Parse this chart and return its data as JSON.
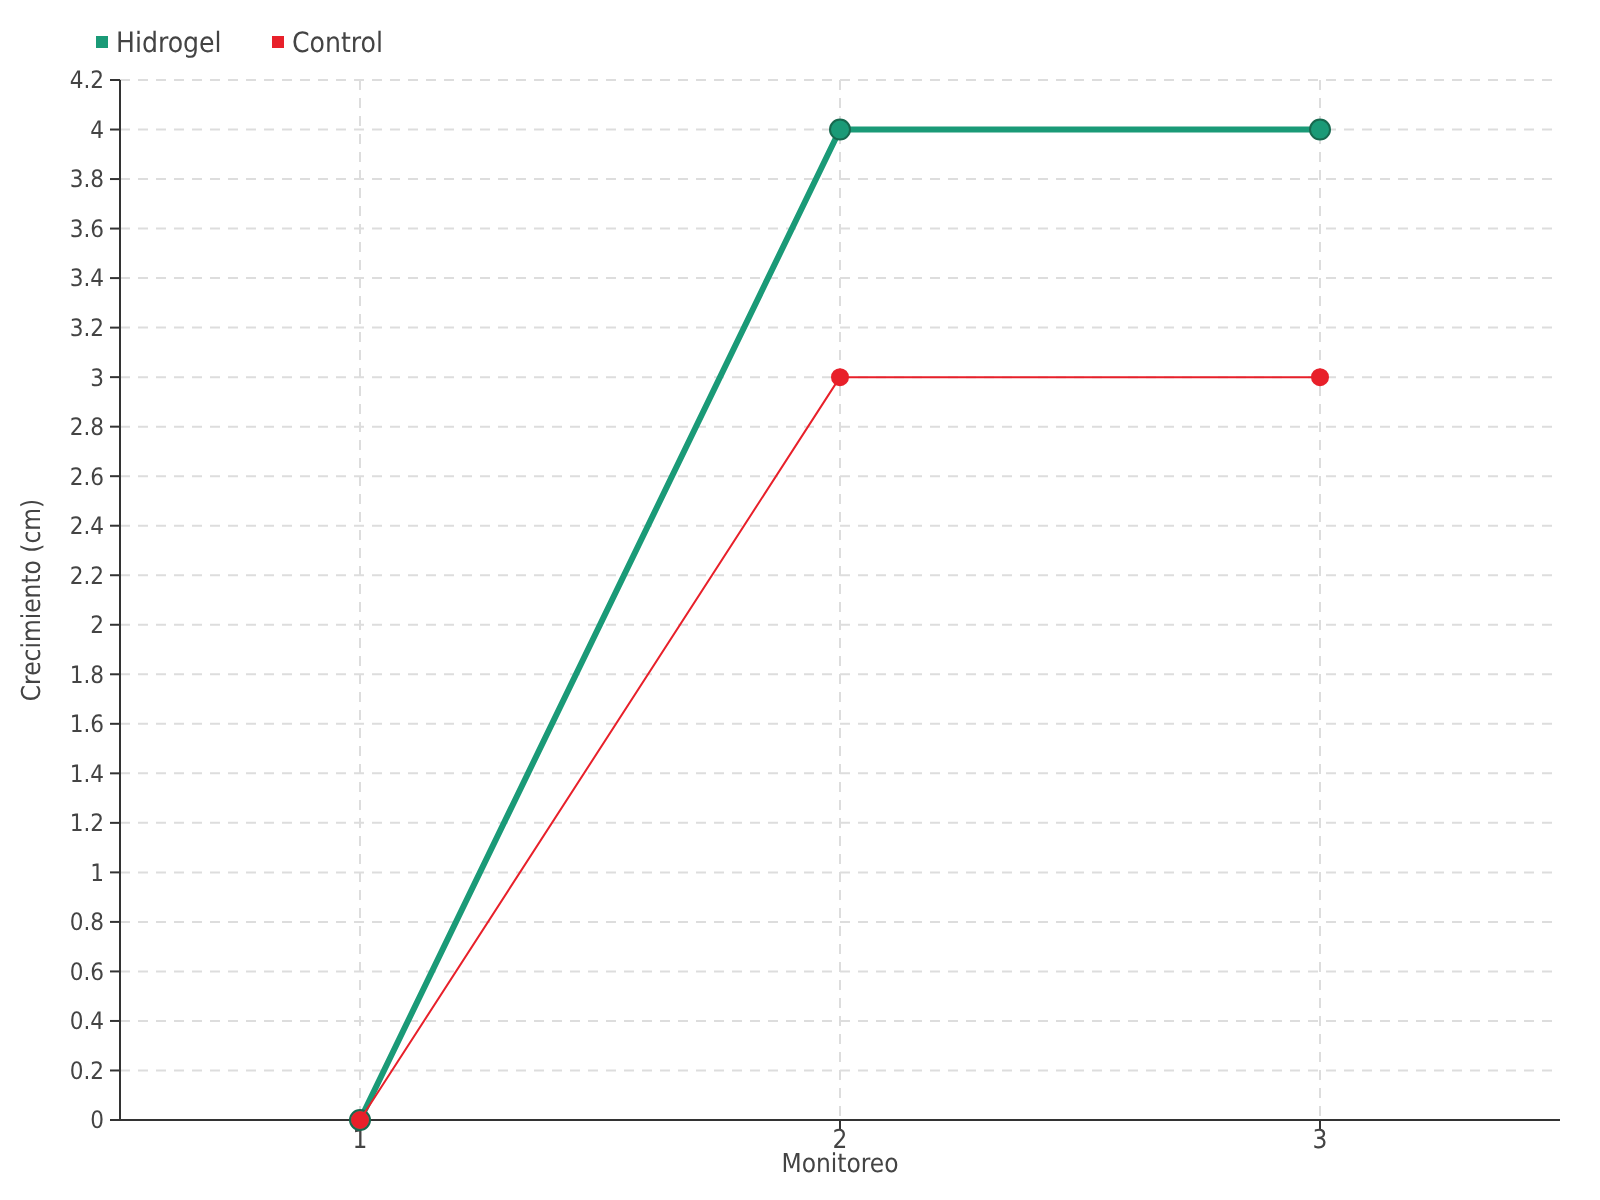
{
  "chart_data": {
    "type": "line",
    "xlabel": "Monitoreo",
    "ylabel": "Crecimiento (cm)",
    "x": [
      1,
      2,
      3
    ],
    "xlim": [
      0.5,
      3.5
    ],
    "xticks": [
      1,
      2,
      3
    ],
    "ylim": [
      0,
      4.2
    ],
    "yticks": [
      0,
      0.2,
      0.4,
      0.6,
      0.8,
      1,
      1.2,
      1.4,
      1.6,
      1.8,
      2,
      2.2,
      2.4,
      2.6,
      2.8,
      3,
      3.2,
      3.4,
      3.6,
      3.8,
      4,
      4.2
    ],
    "series": [
      {
        "name": "Hidrogel",
        "color": "#1a9a77",
        "values": [
          0,
          4,
          4
        ]
      },
      {
        "name": "Control",
        "color": "#e8202a",
        "values": [
          0,
          3,
          3
        ]
      }
    ],
    "grid": true,
    "legend": "top left",
    "marker": "circle",
    "line_style": "solid"
  }
}
